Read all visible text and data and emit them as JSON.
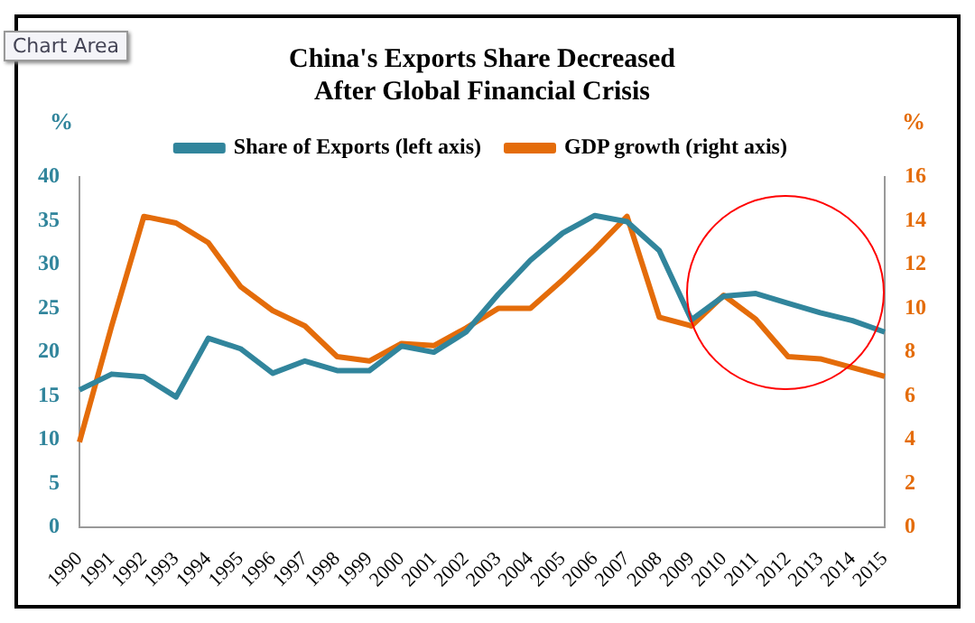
{
  "chart_data": {
    "type": "line",
    "title": "China's Exports Share Decreased\nAfter Global Financial Crisis",
    "ylabel": "%",
    "y2label": "%",
    "categories": [
      "1990",
      "1991",
      "1992",
      "1993",
      "1994",
      "1995",
      "1996",
      "1997",
      "1998",
      "1999",
      "2000",
      "2001",
      "2002",
      "2003",
      "2004",
      "2005",
      "2006",
      "2007",
      "2008",
      "2009",
      "2010",
      "2011",
      "2012",
      "2013",
      "2014",
      "2015"
    ],
    "series": [
      {
        "name": "Share of Exports (left axis)",
        "color": "#31859c",
        "values": [
          15.7,
          17.5,
          17.2,
          14.9,
          21.6,
          20.4,
          17.6,
          19.0,
          17.9,
          17.9,
          20.7,
          20.0,
          22.3,
          26.6,
          30.5,
          33.6,
          35.6,
          34.9,
          31.6,
          23.7,
          26.4,
          26.7,
          25.6,
          24.5,
          23.6,
          22.3
        ]
      },
      {
        "name": "GDP growth (right axis)",
        "color": "#e46c0a",
        "axis": "y2",
        "values": [
          3.9,
          9.2,
          14.2,
          13.9,
          13.0,
          11.0,
          9.9,
          9.2,
          7.8,
          7.6,
          8.4,
          8.3,
          9.1,
          10.0,
          10.0,
          11.3,
          12.7,
          14.2,
          9.6,
          9.2,
          10.6,
          9.5,
          7.8,
          7.7,
          7.3,
          6.9
        ]
      }
    ],
    "ylim": [
      0,
      40
    ],
    "yticks": [
      0,
      5,
      10,
      15,
      20,
      25,
      30,
      35,
      40
    ],
    "y2lim": [
      0,
      16
    ],
    "y2ticks": [
      0,
      2,
      4,
      6,
      8,
      10,
      12,
      14,
      16
    ],
    "grid": false,
    "legend": "top",
    "marker": "none",
    "line_style": "solid",
    "annotations": [
      "Chart Area"
    ]
  }
}
